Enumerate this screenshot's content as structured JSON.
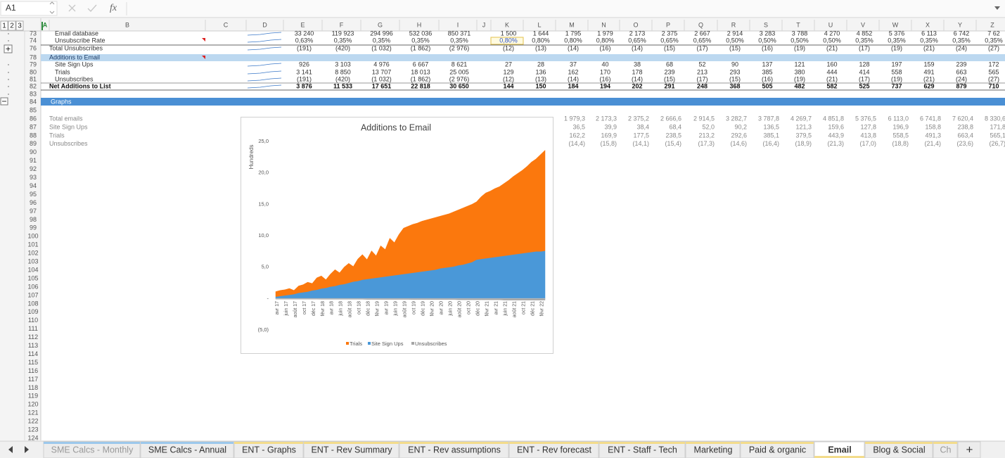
{
  "sheet": {
    "name_box": "A1",
    "formula_icon": "fx",
    "outline_levels": [
      "1",
      "2",
      "3"
    ],
    "columns": [
      "A",
      "B",
      "C",
      "D",
      "E",
      "F",
      "G",
      "H",
      "I",
      "J",
      "K",
      "L",
      "M",
      "N",
      "O",
      "P",
      "Q",
      "R",
      "S",
      "T",
      "U",
      "V",
      "W",
      "X",
      "Y",
      "Z"
    ],
    "row_numbers": [
      "73",
      "74",
      "76",
      "78",
      "79",
      "80",
      "81",
      "82",
      "83",
      "84",
      "85",
      "86",
      "87",
      "88",
      "89",
      "90",
      "91",
      "92",
      "93",
      "94",
      "95",
      "96",
      "97",
      "98",
      "99",
      "100",
      "101",
      "102",
      "103",
      "104",
      "105",
      "106",
      "107",
      "108",
      "109",
      "110",
      "111",
      "112",
      "113",
      "114",
      "115",
      "116",
      "117",
      "118",
      "119",
      "120",
      "121",
      "122",
      "123",
      "124"
    ],
    "data_rows": [
      {
        "label": "Email database",
        "cells": [
          "33 240",
          "119 923",
          "294 996",
          "532 036",
          "850 371",
          "1 500",
          "1 644",
          "1 795",
          "1 979",
          "2 173",
          "2 375",
          "2 667",
          "2 914",
          "3 283",
          "3 788",
          "4 270",
          "4 852",
          "5 376",
          "6 113",
          "6 742",
          "7 62"
        ]
      },
      {
        "label": "Unsubscribe Rate",
        "cells": [
          "0,63%",
          "0,35%",
          "0,35%",
          "0,35%",
          "0,35%",
          "0,80%",
          "0,80%",
          "0,80%",
          "0,80%",
          "0,65%",
          "0,65%",
          "0,65%",
          "0,50%",
          "0,50%",
          "0,50%",
          "0,50%",
          "0,35%",
          "0,35%",
          "0,35%",
          "0,35%",
          "0,35%"
        ]
      },
      {
        "label": "Total Unsubscribes",
        "cells": [
          "(191)",
          "(420)",
          "(1 032)",
          "(1 862)",
          "(2 976)",
          "(12)",
          "(13)",
          "(14)",
          "(16)",
          "(14)",
          "(15)",
          "(17)",
          "(15)",
          "(16)",
          "(19)",
          "(21)",
          "(17)",
          "(19)",
          "(21)",
          "(24)",
          "(27)"
        ]
      },
      {
        "label": "Site Sign Ups",
        "cells": [
          "926",
          "3 103",
          "4 976",
          "6 667",
          "8 621",
          "27",
          "28",
          "37",
          "40",
          "38",
          "68",
          "52",
          "90",
          "137",
          "121",
          "160",
          "128",
          "197",
          "159",
          "239",
          "172"
        ]
      },
      {
        "label": "Trials",
        "cells": [
          "3 141",
          "8 850",
          "13 707",
          "18 013",
          "25 005",
          "129",
          "136",
          "162",
          "170",
          "178",
          "239",
          "213",
          "293",
          "385",
          "380",
          "444",
          "414",
          "558",
          "491",
          "663",
          "565"
        ]
      },
      {
        "label": "Unsubscribes",
        "cells": [
          "(191)",
          "(420)",
          "(1 032)",
          "(1 862)",
          "(2 976)",
          "(12)",
          "(13)",
          "(14)",
          "(16)",
          "(14)",
          "(15)",
          "(17)",
          "(15)",
          "(16)",
          "(19)",
          "(21)",
          "(17)",
          "(19)",
          "(21)",
          "(24)",
          "(27)"
        ]
      },
      {
        "label": "Net Additions to List",
        "cells": [
          "3 876",
          "11 533",
          "17 651",
          "22 818",
          "30 650",
          "144",
          "150",
          "184",
          "194",
          "202",
          "291",
          "248",
          "368",
          "505",
          "482",
          "582",
          "525",
          "737",
          "629",
          "879",
          "710"
        ]
      }
    ],
    "section_headers": [
      "Additions to Email",
      "Graphs"
    ],
    "graph_rows": [
      {
        "label": "Total emails",
        "cells": [
          "1 979,3",
          "2 173,3",
          "2 375,2",
          "2 666,6",
          "2 914,5",
          "3 282,7",
          "3 787,8",
          "4 269,7",
          "4 851,8",
          "5 376,5",
          "6 113,0",
          "6 741,8",
          "7 620,4",
          "8 330,6"
        ]
      },
      {
        "label": "Site Sign Ups",
        "cells": [
          "36,5",
          "39,9",
          "38,4",
          "68,4",
          "52,0",
          "90,2",
          "136,5",
          "121,3",
          "159,6",
          "127,8",
          "196,9",
          "158,8",
          "238,8",
          "171,8"
        ]
      },
      {
        "label": "Trials",
        "cells": [
          "162,2",
          "169,9",
          "177,5",
          "238,5",
          "213,2",
          "292,6",
          "385,1",
          "379,5",
          "443,9",
          "413,8",
          "558,5",
          "491,3",
          "663,4",
          "565,1"
        ]
      },
      {
        "label": "Unsubscribes",
        "cells": [
          "(14,4)",
          "(15,8)",
          "(14,1)",
          "(15,4)",
          "(17,3)",
          "(14,6)",
          "(16,4)",
          "(18,9)",
          "(21,3)",
          "(17,0)",
          "(18,8)",
          "(21,4)",
          "(23,6)",
          "(26,7)"
        ]
      }
    ],
    "tabs": [
      "SME Calcs - Monthly",
      "SME Calcs - Annual",
      "ENT - Graphs",
      "ENT - Rev Summary",
      "ENT - Rev assumptions",
      "ENT - Rev forecast",
      "ENT - Staff - Tech",
      "Marketing",
      "Paid & organic",
      "Email",
      "Blog & Social",
      "Ch",
      "+"
    ]
  },
  "chart_data": {
    "type": "area",
    "stacked": true,
    "title": "Additions to Email",
    "y_label": "Hundreds",
    "legend": "bottom",
    "categories": [
      "avr 17",
      null,
      "juin 17",
      null,
      "août 17",
      null,
      "oct 17",
      null,
      "déc 17",
      null,
      "févr 18",
      null,
      "avr 18",
      null,
      "juin 18",
      null,
      "août 18",
      null,
      "oct 18",
      null,
      "déc 18",
      null,
      "févr 19",
      null,
      "avr 19",
      null,
      "juin 19",
      null,
      "août 19",
      null,
      "oct 19",
      null,
      "déc 19",
      null,
      "févr 20",
      null,
      "avr 20",
      null,
      "juin 20",
      null,
      "août 20",
      null,
      "oct 20",
      null,
      "déc 20",
      null,
      "févr 21",
      null,
      "avr 21",
      null,
      "juin 21",
      null,
      "août 21",
      null,
      "oct 21",
      null,
      "déc 21",
      null,
      "févr 22",
      null
    ],
    "series": [
      {
        "name": "Trials",
        "color": "#fb780d",
        "values": [
          0.8,
          0.9,
          0.9,
          1.0,
          0.6,
          1.1,
          1.2,
          1.5,
          1.1,
          1.9,
          2.0,
          1.3,
          2.0,
          2.6,
          1.9,
          2.7,
          3.1,
          2.4,
          3.5,
          4.0,
          3.1,
          4.4,
          3.5,
          5.0,
          4.3,
          6.0,
          5.2,
          6.4,
          7.3,
          7.5,
          7.7,
          7.8,
          8.0,
          8.1,
          8.2,
          8.3,
          8.3,
          8.4,
          8.5,
          8.7,
          8.8,
          9.0,
          9.1,
          9.2,
          9.2,
          9.9,
          10.4,
          10.6,
          10.9,
          11.1,
          11.5,
          11.9,
          12.4,
          12.8,
          13.2,
          13.7,
          14.3,
          14.7,
          15.4,
          16.0
        ]
      },
      {
        "name": "Site Sign Ups",
        "color": "#4a98d8",
        "values": [
          0.3,
          0.4,
          0.5,
          0.6,
          0.7,
          0.9,
          1.0,
          1.1,
          1.3,
          1.4,
          1.6,
          1.7,
          1.9,
          2.0,
          2.2,
          2.3,
          2.5,
          2.7,
          2.8,
          3.0,
          3.1,
          3.2,
          3.3,
          3.4,
          3.5,
          3.6,
          3.7,
          3.8,
          3.9,
          4.0,
          4.1,
          4.2,
          4.3,
          4.4,
          4.5,
          4.6,
          4.8,
          4.9,
          5.0,
          5.1,
          5.3,
          5.4,
          5.6,
          5.8,
          6.2,
          6.3,
          6.4,
          6.5,
          6.6,
          6.7,
          6.8,
          6.9,
          7.0,
          7.1,
          7.2,
          7.3,
          7.4,
          7.5,
          7.5,
          7.6
        ]
      },
      {
        "name": "Unsubscribes",
        "color": "#a5a5a5",
        "values": [
          -0.1,
          -0.1,
          -0.1,
          -0.1,
          -0.1,
          -0.1,
          -0.1,
          -0.1,
          -0.1,
          -0.1,
          -0.12,
          -0.12,
          -0.12,
          -0.12,
          -0.12,
          -0.12,
          -0.12,
          -0.12,
          -0.12,
          -0.12,
          -0.14,
          -0.14,
          -0.14,
          -0.14,
          -0.14,
          -0.14,
          -0.14,
          -0.14,
          -0.14,
          -0.14,
          -0.16,
          -0.16,
          -0.16,
          -0.16,
          -0.16,
          -0.16,
          -0.16,
          -0.16,
          -0.16,
          -0.16,
          -0.2,
          -0.2,
          -0.2,
          -0.2,
          -0.2,
          -0.2,
          -0.2,
          -0.2,
          -0.2,
          -0.2,
          -0.25,
          -0.25,
          -0.25,
          -0.25,
          -0.25,
          -0.25,
          -0.25,
          -0.25,
          -0.25,
          -0.25
        ]
      }
    ],
    "ylim": [
      -5,
      25
    ],
    "yticks": [
      {
        "value": 25,
        "label": "25,0"
      },
      {
        "value": 20,
        "label": "20,0"
      },
      {
        "value": 15,
        "label": "15,0"
      },
      {
        "value": 10,
        "label": "10,0"
      },
      {
        "value": 5,
        "label": "5,0"
      },
      {
        "value": 0,
        "label": "-"
      },
      {
        "value": -5,
        "label": "(5,0)"
      }
    ]
  }
}
